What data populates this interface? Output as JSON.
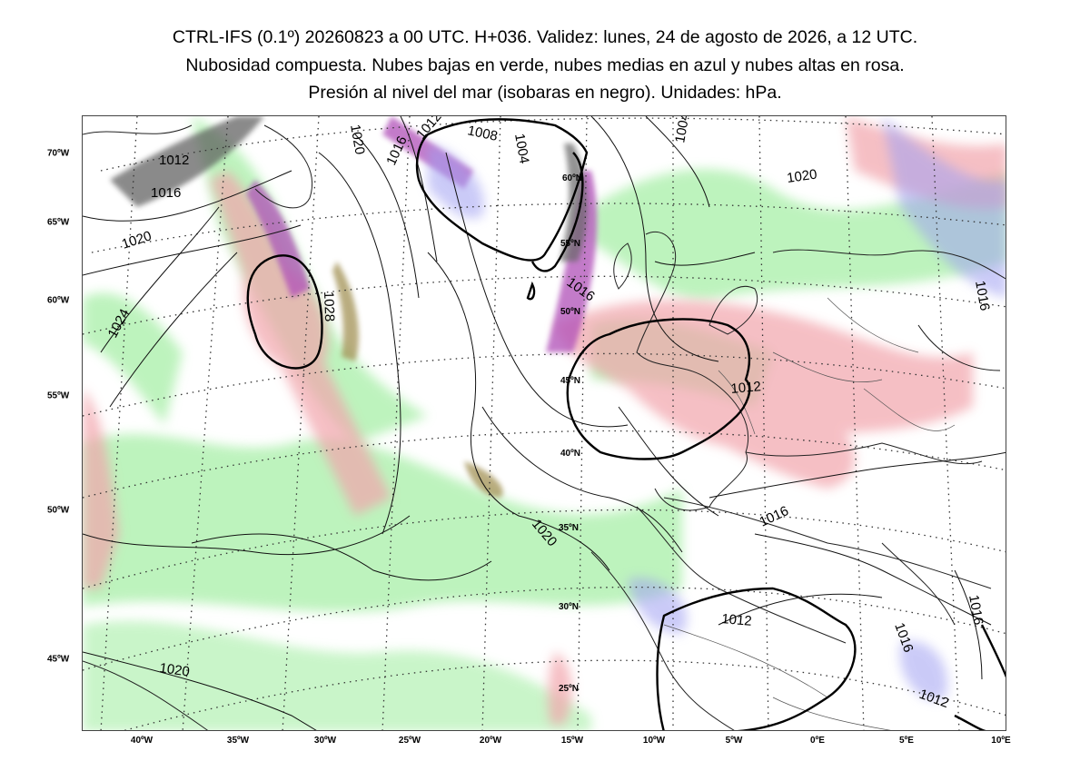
{
  "title": {
    "line1": "CTRL-IFS (0.1º) 20260823 a 00 UTC. H+036. Validez: lunes, 24 de agosto de 2026, a 12 UTC.",
    "line2": "Nubosidad compuesta. Nubes bajas en verde, nubes medias en azul y nubes altas en rosa.",
    "line3": "Presión al nivel del mar (isobaras en negro). Unidades: hPa."
  },
  "axes": {
    "bottom_longitudes": [
      "40ºW",
      "35ºW",
      "30ºW",
      "25ºW",
      "20ºW",
      "15ºW",
      "10ºW",
      "5ºW",
      "0ºE",
      "5ºE",
      "10ºE"
    ],
    "left_latitudes": [
      "70ºW",
      "65ºW",
      "60ºW",
      "55ºW",
      "50ºW",
      "45ºW"
    ],
    "inner_latitudes": [
      "60ºN",
      "55ºN",
      "50ºN",
      "45ºN",
      "40ºN",
      "35ºN",
      "30ºN",
      "25ºN"
    ]
  },
  "isobar_labels": [
    "1012",
    "1016",
    "1020",
    "1024",
    "1028",
    "1020",
    "1016",
    "1012",
    "1008",
    "1004",
    "1016",
    "1004",
    "1020",
    "1016",
    "1012",
    "1020",
    "1016",
    "1012",
    "1016",
    "1016",
    "1012",
    "1020"
  ],
  "legend": {
    "low_clouds_color": "#8fe88f",
    "mid_clouds_color": "#9c9cf0",
    "high_clouds_color": "#f0a0a8",
    "isobar_color": "#000000"
  }
}
